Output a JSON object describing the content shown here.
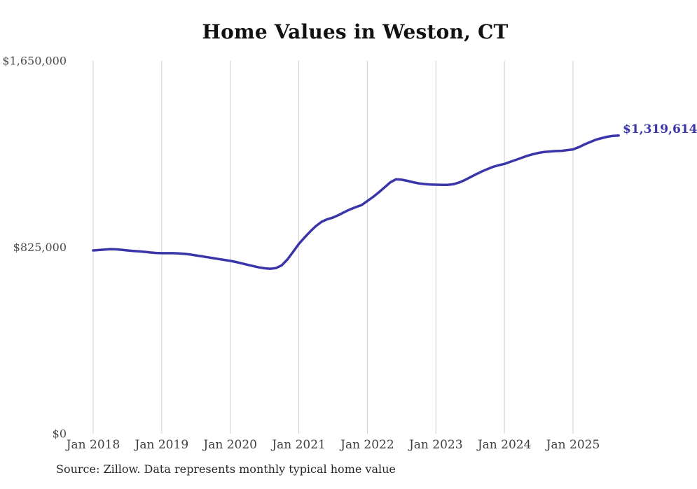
{
  "title": "Home Values in Weston, CT",
  "source_note": "Source: Zillow. Data represents monthly typical home value",
  "end_label": "$1,319,614",
  "colors": {
    "line": "#3a35a8",
    "end_label_text": "#3a35a8",
    "grid": "#cfcfcf",
    "y_axis_text": "#4a4a4a",
    "x_axis_text": "#3f3f3f",
    "title_text": "#111111",
    "source_text": "#262626",
    "background": "#ffffff"
  },
  "chart_data": {
    "type": "line",
    "title": "Home Values in Weston, CT",
    "xlabel": "",
    "ylabel": "",
    "x_start": "2018-01",
    "x_interval": "month",
    "x_tick_labels": [
      "Jan 2018",
      "Jan 2019",
      "Jan 2020",
      "Jan 2021",
      "Jan 2022",
      "Jan 2023",
      "Jan 2024",
      "Jan 2025"
    ],
    "x_tick_month_offsets": [
      0,
      12,
      24,
      36,
      48,
      60,
      72,
      84
    ],
    "y_tick_labels": [
      "$0",
      "$825,000",
      "$1,650,000"
    ],
    "y_tick_values": [
      0,
      825000,
      1650000
    ],
    "ylim": [
      0,
      1650000
    ],
    "grid": "vertical-only",
    "legend": "none",
    "latest_value": 1319614,
    "latest_value_label": "$1,319,614",
    "series": [
      {
        "name": "Typical home value",
        "values": [
          811000,
          813000,
          815000,
          817000,
          816000,
          814000,
          811000,
          809000,
          807000,
          805000,
          802000,
          800000,
          799000,
          799000,
          799000,
          798000,
          796000,
          793000,
          789000,
          785000,
          781000,
          777000,
          773000,
          769000,
          765000,
          760000,
          754000,
          748000,
          742000,
          736000,
          732000,
          730000,
          733000,
          745000,
          771000,
          805000,
          840000,
          868000,
          895000,
          919000,
          938000,
          949000,
          957000,
          968000,
          981000,
          993000,
          1003000,
          1012000,
          1030000,
          1048000,
          1068000,
          1090000,
          1112000,
          1126000,
          1124000,
          1119000,
          1113000,
          1108000,
          1105000,
          1103000,
          1102000,
          1101000,
          1101000,
          1104000,
          1111000,
          1122000,
          1135000,
          1148000,
          1160000,
          1171000,
          1181000,
          1188000,
          1194000,
          1203000,
          1212000,
          1221000,
          1230000,
          1237000,
          1243000,
          1247000,
          1249000,
          1251000,
          1252000,
          1255000,
          1258000,
          1268000,
          1280000,
          1291000,
          1301000,
          1308000,
          1314000,
          1318000,
          1319614
        ]
      }
    ]
  }
}
